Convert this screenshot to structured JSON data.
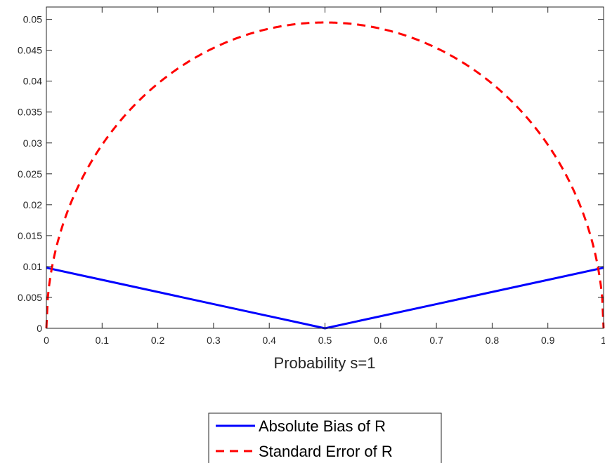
{
  "chart_data": {
    "type": "line",
    "title": "",
    "xlabel": "Probability s=1",
    "ylabel": "",
    "xlim": [
      0,
      1
    ],
    "ylim": [
      0,
      0.052
    ],
    "xticks": [
      0,
      0.1,
      0.2,
      0.3,
      0.4,
      0.5,
      0.6,
      0.7,
      0.8,
      0.9,
      1
    ],
    "xtick_labels": [
      "0",
      "0.1",
      "0.2",
      "0.3",
      "0.4",
      "0.5",
      "0.6",
      "0.7",
      "0.8",
      "0.9",
      "1"
    ],
    "yticks": [
      0,
      0.005,
      0.01,
      0.015,
      0.02,
      0.025,
      0.03,
      0.035,
      0.04,
      0.045,
      0.05
    ],
    "ytick_labels": [
      "0",
      "0.005",
      "0.01",
      "0.015",
      "0.02",
      "0.025",
      "0.03",
      "0.035",
      "0.04",
      "0.045",
      "0.05"
    ],
    "grid": false,
    "legend_position": "bottom-center, outside plot",
    "series": [
      {
        "name": "Absolute Bias of R",
        "color": "#0000ff",
        "style": "solid",
        "x": [
          0,
          0.5,
          1
        ],
        "y": [
          0.0098,
          0,
          0.0098
        ]
      },
      {
        "name": "Standard Error of R",
        "color": "#ff0000",
        "style": "dashed",
        "x": [
          0,
          0.01,
          0.02,
          0.05,
          0.1,
          0.15,
          0.2,
          0.25,
          0.3,
          0.35,
          0.4,
          0.45,
          0.5,
          0.55,
          0.6,
          0.65,
          0.7,
          0.75,
          0.8,
          0.85,
          0.9,
          0.95,
          0.98,
          0.99,
          1
        ],
        "y": [
          0,
          0.00988,
          0.0139,
          0.0216,
          0.0297,
          0.0354,
          0.0397,
          0.0429,
          0.0454,
          0.0472,
          0.0485,
          0.0493,
          0.0495,
          0.0493,
          0.0485,
          0.0472,
          0.0454,
          0.0429,
          0.0397,
          0.0354,
          0.0297,
          0.0216,
          0.0139,
          0.00988,
          0
        ]
      }
    ]
  }
}
